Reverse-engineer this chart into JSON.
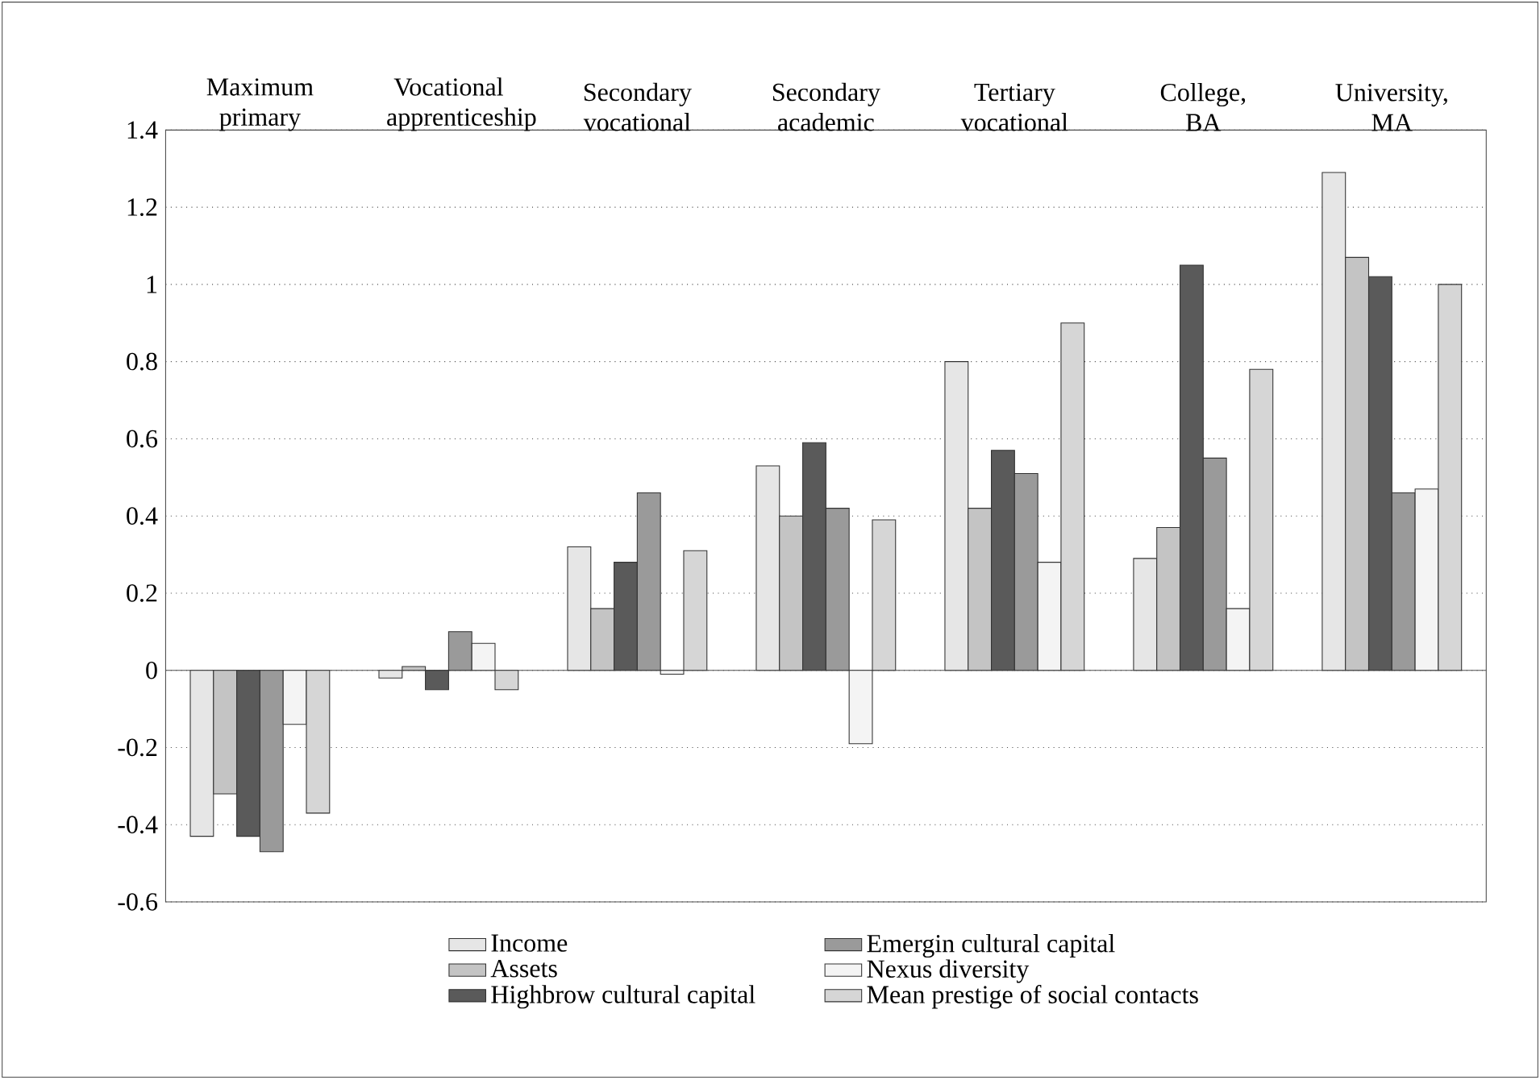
{
  "chart_data": {
    "type": "bar",
    "categories": [
      "Maximum primary",
      "Vocational apprenticeship",
      "Secondary vocational",
      "Secondary academic",
      "Tertiary vocational",
      "College, BA",
      "University, MA"
    ],
    "series": [
      {
        "name": "Income",
        "color": "#e6e6e6",
        "values": [
          -0.43,
          -0.02,
          0.32,
          0.53,
          0.8,
          0.29,
          1.29
        ]
      },
      {
        "name": "Assets",
        "color": "#c4c4c4",
        "values": [
          -0.32,
          0.01,
          0.16,
          0.4,
          0.42,
          0.37,
          1.07
        ]
      },
      {
        "name": "Highbrow cultural capital",
        "color": "#5a5a5a",
        "values": [
          -0.43,
          -0.05,
          0.28,
          0.59,
          0.57,
          1.05,
          1.02
        ]
      },
      {
        "name": "Emergin cultural capital",
        "color": "#9a9a9a",
        "values": [
          -0.47,
          0.1,
          0.46,
          0.42,
          0.51,
          0.55,
          0.46
        ]
      },
      {
        "name": "Nexus diversity",
        "color": "#f4f4f4",
        "values": [
          -0.14,
          0.07,
          -0.01,
          -0.19,
          0.28,
          0.16,
          0.47
        ]
      },
      {
        "name": "Mean prestige of social contacts",
        "color": "#d6d6d6",
        "values": [
          -0.37,
          -0.05,
          0.31,
          0.39,
          0.9,
          0.78,
          1.0
        ]
      }
    ],
    "ylim": [
      -0.6,
      1.4
    ],
    "yticks": [
      -0.6,
      -0.4,
      -0.2,
      0,
      0.2,
      0.4,
      0.6,
      0.8,
      1,
      1.2,
      1.4
    ],
    "grid": "y",
    "legend": "bottom"
  }
}
